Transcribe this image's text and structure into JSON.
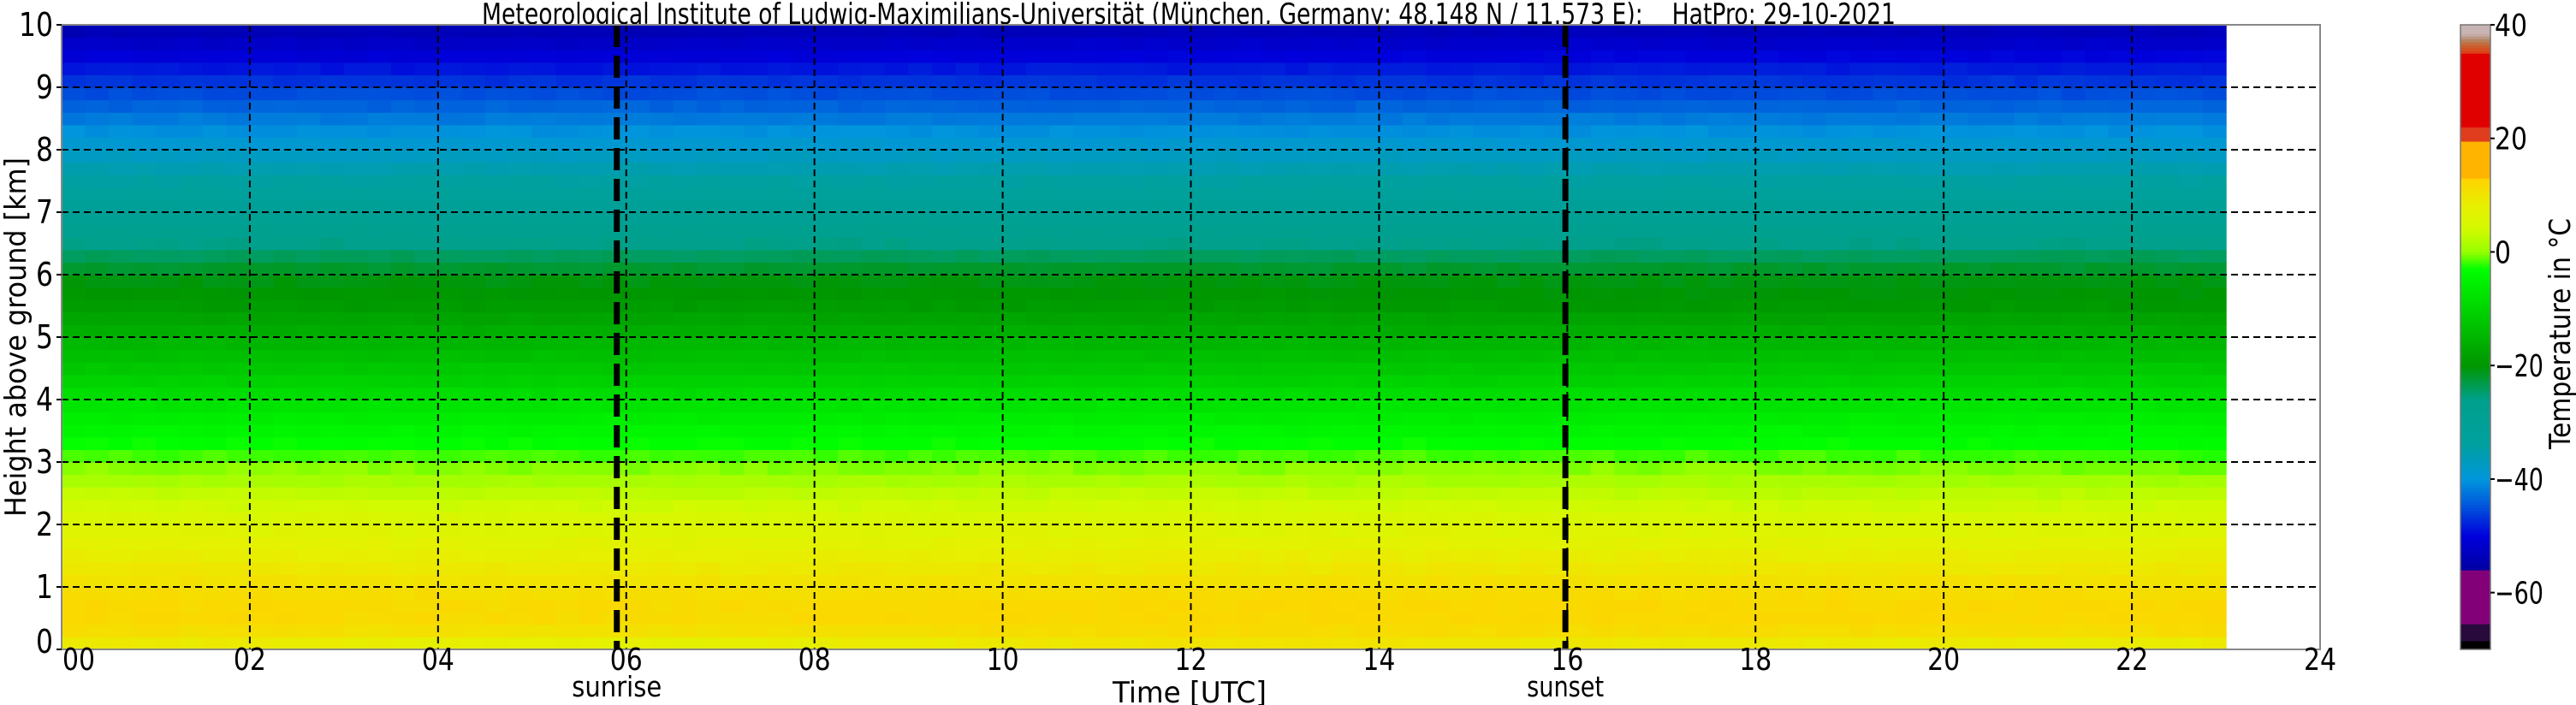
{
  "chart_data": {
    "type": "heatmap",
    "title": "Meteorological Institute of Ludwig-Maximilians-Universität (München, Germany; 48.148 N / 11.573 E):    HatPro: 29-10-2021",
    "xlabel": "Time [UTC]",
    "ylabel": "Height above ground [km]",
    "xlim": [
      0,
      24
    ],
    "ylim": [
      0,
      10
    ],
    "x_ticks": [
      "00",
      "02",
      "04",
      "06",
      "08",
      "10",
      "12",
      "14",
      "16",
      "18",
      "20",
      "22",
      "24"
    ],
    "y_ticks": [
      "0",
      "1",
      "2",
      "3",
      "4",
      "5",
      "6",
      "7",
      "8",
      "9",
      "10"
    ],
    "grid": true,
    "data_time_range_h": [
      0,
      23
    ],
    "heights_km": [
      0,
      0.25,
      0.5,
      0.75,
      1,
      1.5,
      2,
      2.5,
      3,
      3.5,
      4,
      4.5,
      5,
      5.5,
      6,
      6.5,
      7,
      7.5,
      8,
      8.5,
      9,
      9.5,
      10
    ],
    "profiles": [
      {
        "time_h": 0,
        "temperature_c": [
          8.5,
          11,
          12,
          12,
          11,
          8.5,
          6,
          3,
          -1,
          -4.5,
          -8,
          -12,
          -15.5,
          -19,
          -21,
          -26,
          -30,
          -34,
          -38,
          -42,
          -46,
          -50.5,
          -54.5
        ]
      },
      {
        "time_h": 6,
        "temperature_c": [
          6,
          10,
          11.5,
          11.5,
          10.5,
          8,
          5.5,
          2.5,
          -1,
          -4.5,
          -8,
          -12,
          -15.5,
          -19,
          -21,
          -26,
          -30,
          -34,
          -38,
          -42,
          -46,
          -50.5,
          -54.5
        ]
      },
      {
        "time_h": 12,
        "temperature_c": [
          9.5,
          11.5,
          12,
          12,
          11,
          8.5,
          6,
          3,
          -1,
          -4.5,
          -8,
          -12,
          -15.5,
          -19,
          -21,
          -26,
          -30,
          -34,
          -38,
          -42,
          -46,
          -50,
          -54
        ]
      },
      {
        "time_h": 18,
        "temperature_c": [
          8,
          11,
          12,
          12,
          11,
          8.5,
          5.5,
          2.5,
          -1,
          -4.5,
          -8,
          -12,
          -15.5,
          -19.5,
          -21,
          -26,
          -30,
          -34,
          -38,
          -42,
          -46,
          -50,
          -54
        ]
      },
      {
        "time_h": 23,
        "temperature_c": [
          7.5,
          11,
          12,
          12,
          11,
          8.5,
          5.5,
          2.5,
          -1.5,
          -4.5,
          -8,
          -12,
          -15.5,
          -19.5,
          -21,
          -26,
          -30,
          -34,
          -38,
          -42,
          -46,
          -50,
          -54
        ]
      }
    ],
    "annotations": [
      {
        "label": "sunrise",
        "time_h": 5.9
      },
      {
        "label": "sunset",
        "time_h": 15.98
      }
    ],
    "colorbar": {
      "label": "Temperature in °C",
      "range": [
        -70,
        40
      ],
      "ticks": [
        "40",
        "20",
        "0",
        "−20",
        "−40",
        "−60"
      ],
      "tick_values": [
        40,
        20,
        0,
        -20,
        -40,
        -60
      ],
      "colormap": [
        [
          -70,
          "#000000"
        ],
        [
          -68.5,
          "#000000"
        ],
        [
          -68.5,
          "#280a3c"
        ],
        [
          -65.5,
          "#280a3c"
        ],
        [
          -65.5,
          "#820078"
        ],
        [
          -56,
          "#820078"
        ],
        [
          -56,
          "#0000a0"
        ],
        [
          -50,
          "#0000dc"
        ],
        [
          -45,
          "#0050dc"
        ],
        [
          -40,
          "#0096dc"
        ],
        [
          -34,
          "#00a0a0"
        ],
        [
          -26,
          "#00a08c"
        ],
        [
          -20,
          "#009600"
        ],
        [
          -12,
          "#00c800"
        ],
        [
          -3,
          "#00ff00"
        ],
        [
          0,
          "#96ff00"
        ],
        [
          4,
          "#d2fa00"
        ],
        [
          8,
          "#e6f000"
        ],
        [
          13,
          "#ffd200"
        ],
        [
          13,
          "#ffb400"
        ],
        [
          19.6,
          "#ffb400"
        ],
        [
          19.6,
          "#e03c1e"
        ],
        [
          22,
          "#e03c1e"
        ],
        [
          22,
          "#e00000"
        ],
        [
          35,
          "#e00000"
        ],
        [
          35,
          "#e03c14"
        ],
        [
          36.5,
          "#c86432"
        ],
        [
          37.5,
          "#b48c6e"
        ],
        [
          38.5,
          "#c8b4b4"
        ],
        [
          40,
          "#c8b4b4"
        ]
      ]
    }
  }
}
